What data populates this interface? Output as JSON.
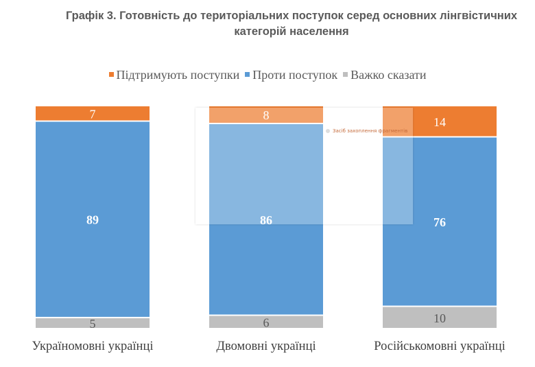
{
  "chart_data": {
    "type": "bar",
    "stacked": true,
    "title": "Графік 3. Готовність до територіальних поступок серед основних лінгвістичних категорій населення",
    "categories": [
      "Україномовні українці",
      "Двомовні українці",
      "Російськомовні українці"
    ],
    "series": [
      {
        "name": "Підтримують поступки",
        "color": "#ED7D31",
        "values": [
          7,
          8,
          14
        ]
      },
      {
        "name": "Проти поступок",
        "color": "#5B9BD5",
        "values": [
          89,
          86,
          76
        ]
      },
      {
        "name": "Важко сказати",
        "color": "#BFBFBF",
        "values": [
          5,
          6,
          10
        ]
      }
    ],
    "legend_position": "top",
    "grid": false,
    "axes_visible": false
  },
  "overlay": {
    "text": "Засіб захоплення фрагментів"
  }
}
